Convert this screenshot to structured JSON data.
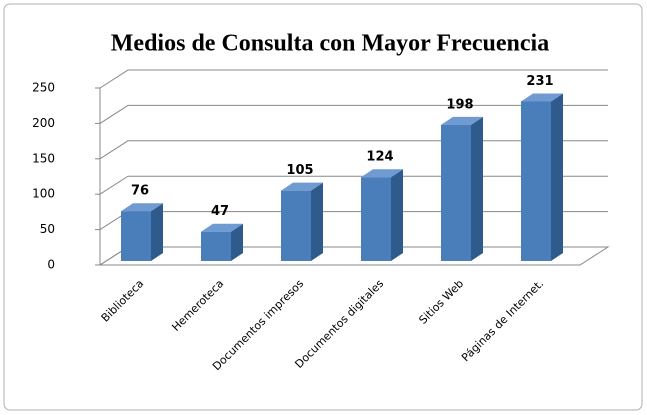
{
  "chart_data": {
    "type": "bar3d",
    "title": "Medios de Consulta con Mayor Frecuencia",
    "categories": [
      "Biblioteca",
      "Hemeroteca",
      "Documentos impresos",
      "Documentos digitales",
      "Sitios Web",
      "Páginas de Internet."
    ],
    "values": [
      76,
      47,
      105,
      124,
      198,
      231
    ],
    "color": "#4a7ebb",
    "ylim": [
      0,
      250
    ],
    "yticks": [
      0,
      50,
      100,
      150,
      200,
      250
    ],
    "grid": true
  }
}
